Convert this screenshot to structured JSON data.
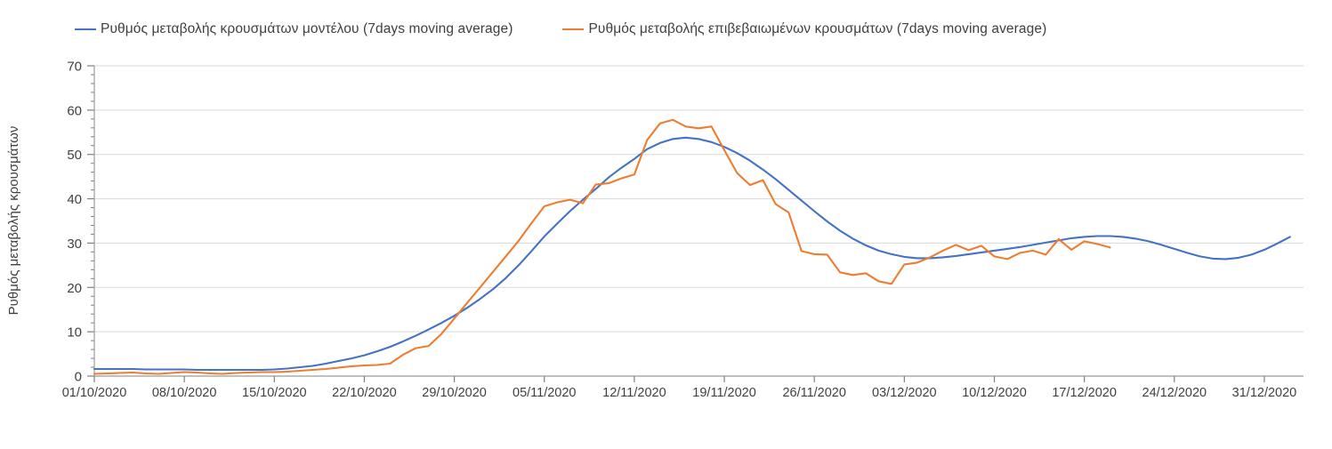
{
  "chart_data": {
    "type": "line",
    "title": "",
    "xlabel": "",
    "ylabel": "Ρυθμός μεταβολής κρουσμάτων",
    "ylim": [
      0,
      70
    ],
    "y_major_step": 10,
    "y_minor_step": 2,
    "y_tick_labels": [
      "0",
      "10",
      "20",
      "30",
      "40",
      "50",
      "60",
      "70"
    ],
    "grid": "horizontal-major-only",
    "legend_position": "top",
    "x_unit": "days since 01/10/2020",
    "x_tick_days": [
      0,
      7,
      14,
      21,
      28,
      35,
      42,
      49,
      56,
      63,
      70,
      77,
      84,
      91
    ],
    "x_tick_labels": [
      "01/10/2020",
      "08/10/2020",
      "15/10/2020",
      "22/10/2020",
      "29/10/2020",
      "05/11/2020",
      "12/11/2020",
      "19/11/2020",
      "26/11/2020",
      "03/12/2020",
      "10/12/2020",
      "17/12/2020",
      "24/12/2020",
      "31/12/2020"
    ],
    "axis_color": "#9b9b9b",
    "tick_color": "#7f7f7f",
    "grid_color": "#d9d9d9",
    "tick_text_color": "#404040",
    "series": [
      {
        "name": "Ρυθμός μεταβολής κρουσμάτων μοντέλου (7days moving average)",
        "color": "#4472c4",
        "x_start_day": 0,
        "values": [
          1.6,
          1.6,
          1.6,
          1.6,
          1.5,
          1.5,
          1.5,
          1.5,
          1.4,
          1.4,
          1.4,
          1.4,
          1.4,
          1.4,
          1.5,
          1.7,
          2.0,
          2.3,
          2.8,
          3.4,
          4.0,
          4.7,
          5.6,
          6.6,
          7.8,
          9.1,
          10.5,
          12.0,
          13.6,
          15.4,
          17.4,
          19.6,
          22.1,
          25.0,
          28.2,
          31.5,
          34.4,
          37.2,
          39.8,
          42.2,
          44.8,
          47.0,
          49.0,
          51.2,
          52.6,
          53.5,
          53.8,
          53.5,
          52.8,
          51.7,
          50.3,
          48.6,
          46.6,
          44.4,
          42.0,
          39.6,
          37.2,
          34.9,
          32.8,
          31.0,
          29.5,
          28.3,
          27.5,
          26.9,
          26.6,
          26.6,
          26.8,
          27.1,
          27.5,
          27.9,
          28.3,
          28.7,
          29.1,
          29.6,
          30.1,
          30.6,
          31.1,
          31.4,
          31.6,
          31.6,
          31.4,
          31.0,
          30.4,
          29.6,
          28.7,
          27.8,
          27.0,
          26.5,
          26.4,
          26.7,
          27.4,
          28.5,
          29.9,
          31.4
        ]
      },
      {
        "name": "Ρυθμός μεταβολής επιβεβαιωμένων κρουσμάτων (7days moving average)",
        "color": "#ed7d31",
        "x_start_day": 0,
        "values": [
          0.5,
          0.6,
          0.7,
          0.8,
          0.6,
          0.5,
          0.7,
          0.9,
          0.8,
          0.6,
          0.5,
          0.7,
          0.8,
          0.9,
          0.9,
          1.0,
          1.2,
          1.4,
          1.6,
          1.9,
          2.2,
          2.4,
          2.5,
          2.8,
          4.8,
          6.3,
          6.8,
          9.5,
          13.0,
          16.5,
          20.0,
          23.5,
          27.0,
          30.5,
          34.5,
          38.3,
          39.2,
          39.8,
          39.0,
          43.2,
          43.5,
          44.6,
          45.5,
          53.3,
          57.0,
          57.8,
          56.3,
          55.9,
          56.3,
          51.0,
          45.8,
          43.1,
          44.2,
          38.8,
          36.9,
          28.2,
          27.5,
          27.4,
          23.4,
          22.8,
          23.2,
          21.4,
          20.8,
          25.2,
          25.6,
          26.8,
          28.3,
          29.6,
          28.4,
          29.4,
          27.0,
          26.4,
          27.8,
          28.3,
          27.4,
          30.9,
          28.5,
          30.4,
          29.8,
          29.0
        ]
      }
    ]
  }
}
